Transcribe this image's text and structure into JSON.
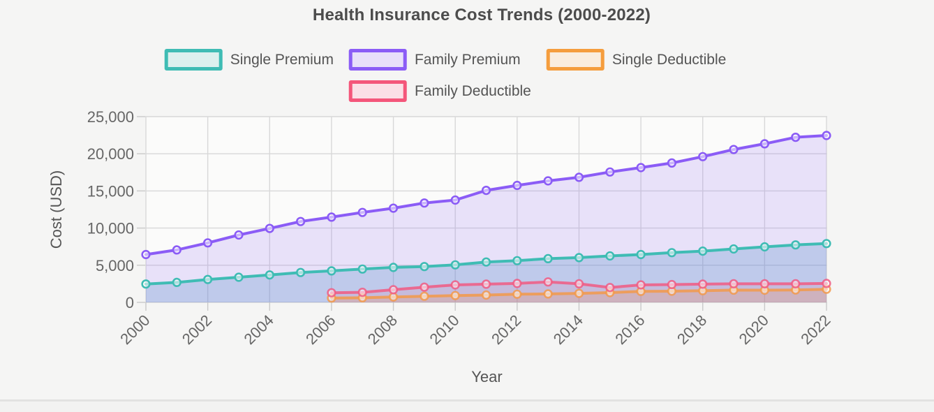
{
  "header": {
    "title": "Health Insurance Cost Trends (2000-2022)"
  },
  "chart_data": {
    "type": "line",
    "title": "Health Insurance Cost Trends (2000-2022)",
    "xlabel": "Year",
    "ylabel": "Cost (USD)",
    "x": [
      2000,
      2001,
      2002,
      2003,
      2004,
      2005,
      2006,
      2007,
      2008,
      2009,
      2010,
      2011,
      2012,
      2013,
      2014,
      2015,
      2016,
      2017,
      2018,
      2019,
      2020,
      2021,
      2022
    ],
    "x_tick_every": 2,
    "ylim": [
      0,
      25000
    ],
    "ytick_step": 5000,
    "grid": true,
    "legend_position": "top",
    "series": [
      {
        "name": "Single Premium",
        "color": "#3FBCB4",
        "line_color": "#3FBCB4",
        "area_color": "rgba(80,140,200,0.27)",
        "swatch_fill": "#DCF0EE",
        "values": [
          2471,
          2689,
          3083,
          3383,
          3695,
          4024,
          4242,
          4479,
          4704,
          4824,
          5049,
          5429,
          5615,
          5884,
          6025,
          6251,
          6435,
          6690,
          6896,
          7188,
          7470,
          7739,
          7911
        ]
      },
      {
        "name": "Family Premium",
        "color": "#8B5CF6",
        "line_color": "#8B5CF6",
        "area_color": "rgba(139,92,246,0.16)",
        "swatch_fill": "#E8DFFA",
        "values": [
          6438,
          7061,
          8003,
          9068,
          9950,
          10880,
          11480,
          12106,
          12680,
          13375,
          13770,
          15073,
          15745,
          16351,
          16834,
          17545,
          18142,
          18764,
          19616,
          20576,
          21342,
          22221,
          22463
        ]
      },
      {
        "name": "Single Deductible",
        "color": "#F59D3D",
        "line_color": "rgba(242,153,74,0.85)",
        "area_color": "rgba(245,157,61,0.20)",
        "swatch_fill": "#FAEDDE",
        "values": [
          null,
          null,
          null,
          null,
          null,
          null,
          584,
          616,
          735,
          826,
          917,
          991,
          1097,
          1135,
          1217,
          1318,
          1478,
          1505,
          1573,
          1655,
          1644,
          1669,
          1763
        ]
      },
      {
        "name": "Family Deductible",
        "color": "#F4567A",
        "line_color": "rgba(240,90,130,0.85)",
        "area_color": "rgba(244,86,122,0.12)",
        "swatch_fill": "#FBDFE6",
        "values": [
          null,
          null,
          null,
          null,
          null,
          null,
          1300,
          1350,
          1700,
          2050,
          2350,
          2450,
          2550,
          2750,
          2500,
          2000,
          2350,
          2400,
          2450,
          2500,
          2500,
          2500,
          2550
        ]
      }
    ],
    "area_order": [
      1,
      0,
      2,
      3
    ],
    "line_order": [
      0,
      1,
      2,
      3
    ],
    "style": {
      "page_bg": "#f5f5f4",
      "plot_bg": "#fbfbfa",
      "grid_color": "#d8d8d8",
      "tick_color": "#c9c9c9",
      "tick_text_color": "#666666",
      "axis_title_color": "#555555",
      "title_color": "#4c4c4c",
      "legend_text_color": "#545454",
      "marker_fill": "rgba(255,255,255,0.55)",
      "divider_color": "#e2e2e1"
    }
  }
}
